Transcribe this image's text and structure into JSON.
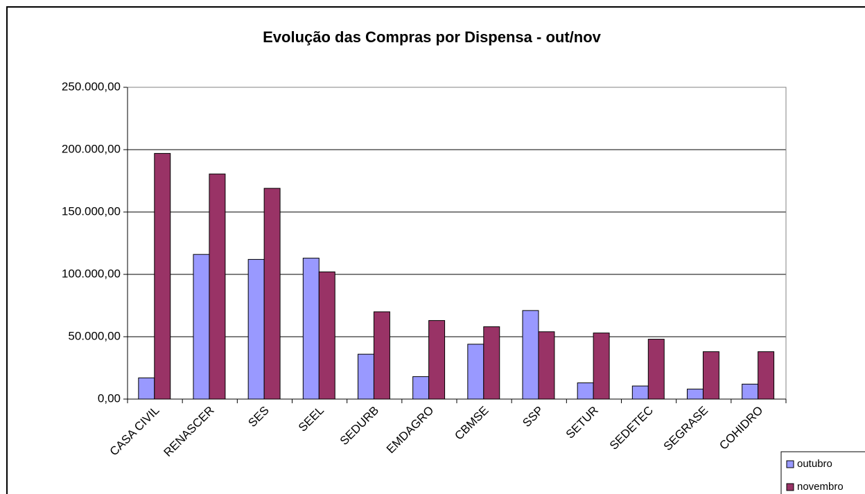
{
  "chart_data": {
    "type": "bar",
    "title": "Evolução das Compras por Dispensa - out/nov",
    "categories": [
      "CASA CIVIL",
      "RENASCER",
      "SES",
      "SEEL",
      "SEDURB",
      "EMDAGRO",
      "CBMSE",
      "SSP",
      "SETUR",
      "SEDETEC",
      "SEGRASE",
      "COHIDRO"
    ],
    "series": [
      {
        "name": "outubro",
        "color": "#9999ff",
        "values": [
          17000,
          116000,
          112000,
          113000,
          36000,
          18000,
          44000,
          71000,
          13000,
          10500,
          8000,
          12000
        ]
      },
      {
        "name": "novembro",
        "color": "#993366",
        "values": [
          197000,
          180500,
          169000,
          102000,
          70000,
          63000,
          58000,
          54000,
          53000,
          48000,
          38000,
          38000
        ]
      }
    ],
    "ylim": [
      0,
      250000
    ],
    "yticks": [
      {
        "value": 0,
        "label": "0,00"
      },
      {
        "value": 50000,
        "label": "50.000,00"
      },
      {
        "value": 100000,
        "label": "100.000,00"
      },
      {
        "value": 150000,
        "label": "150.000,00"
      },
      {
        "value": 200000,
        "label": "200.000,00"
      },
      {
        "value": 250000,
        "label": "250.000,00"
      }
    ],
    "grid": true,
    "legend": "bottom-right"
  }
}
